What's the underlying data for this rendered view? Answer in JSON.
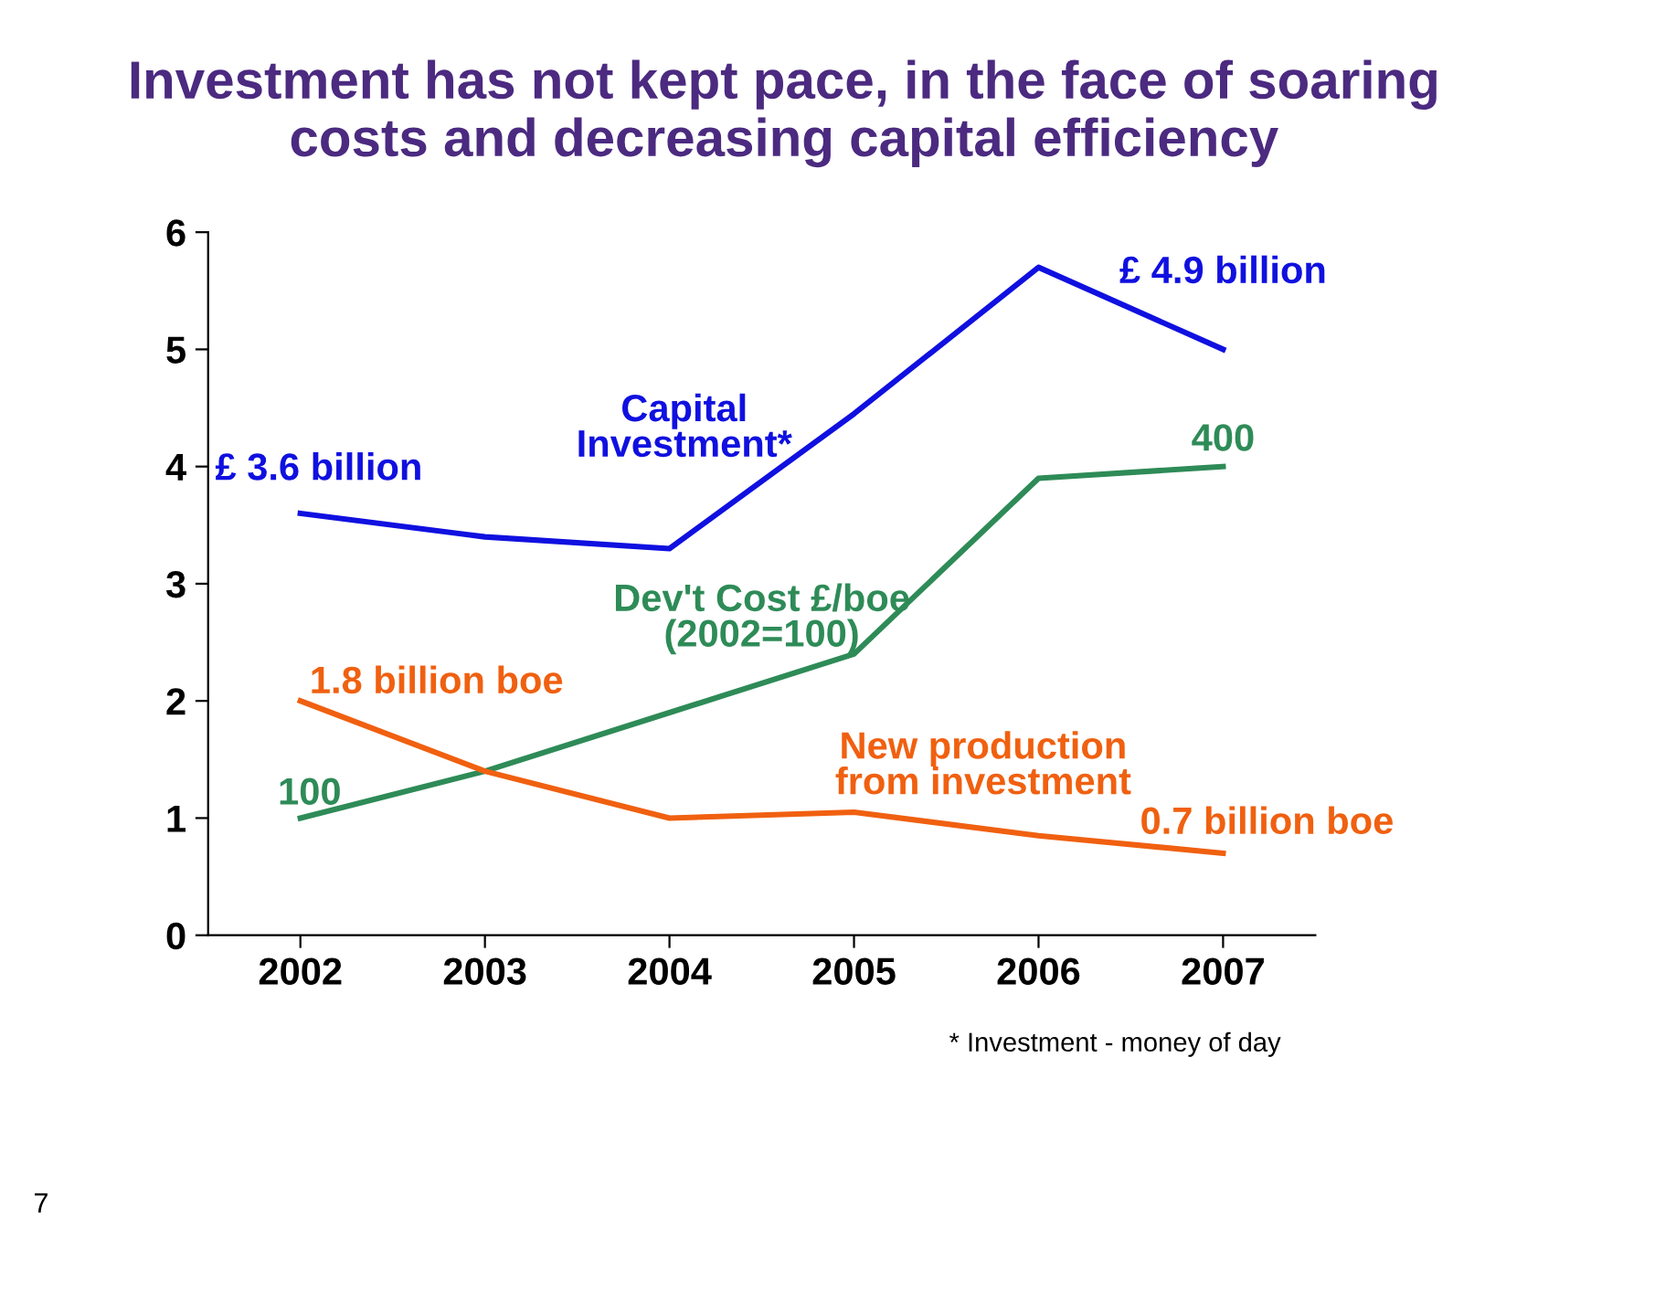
{
  "chart_data": {
    "type": "line",
    "title": "Investment has not kept pace, in the face of soaring\ncosts and decreasing capital efficiency",
    "categories": [
      "2002",
      "2003",
      "2004",
      "2005",
      "2006",
      "2007"
    ],
    "series": [
      {
        "name": "Capital\nInvestment*",
        "color": "#1010e0",
        "values": [
          3.6,
          3.4,
          3.3,
          4.45,
          5.7,
          5.0
        ]
      },
      {
        "name": "Dev't Cost £/boe\n(2002=100)",
        "color": "#2e8b57",
        "values": [
          1.0,
          1.4,
          1.9,
          2.4,
          3.9,
          4.0
        ]
      },
      {
        "name": "New production\nfrom investment",
        "color": "#f06010",
        "values": [
          2.0,
          1.4,
          1.0,
          1.05,
          0.85,
          0.7
        ]
      }
    ],
    "ylim": [
      0,
      6
    ],
    "yticks": [
      0,
      1,
      2,
      3,
      4,
      5,
      6
    ],
    "grid": false,
    "legend": false,
    "marker": "none",
    "line_style": "solid",
    "annotations": [
      {
        "text": "£ 3.6 billion",
        "x": "2002",
        "y": 3.6
      },
      {
        "text": "£ 4.9 billion",
        "x": "2007",
        "y": 5.0
      },
      {
        "text": "100",
        "x": "2002",
        "y": 1.0
      },
      {
        "text": "400",
        "x": "2007",
        "y": 4.0
      },
      {
        "text": "1.8 billion boe",
        "x": "2002",
        "y": 2.0
      },
      {
        "text": "0.7 billion boe",
        "x": "2007",
        "y": 0.7
      },
      "* Investment - money of day",
      "7"
    ]
  }
}
